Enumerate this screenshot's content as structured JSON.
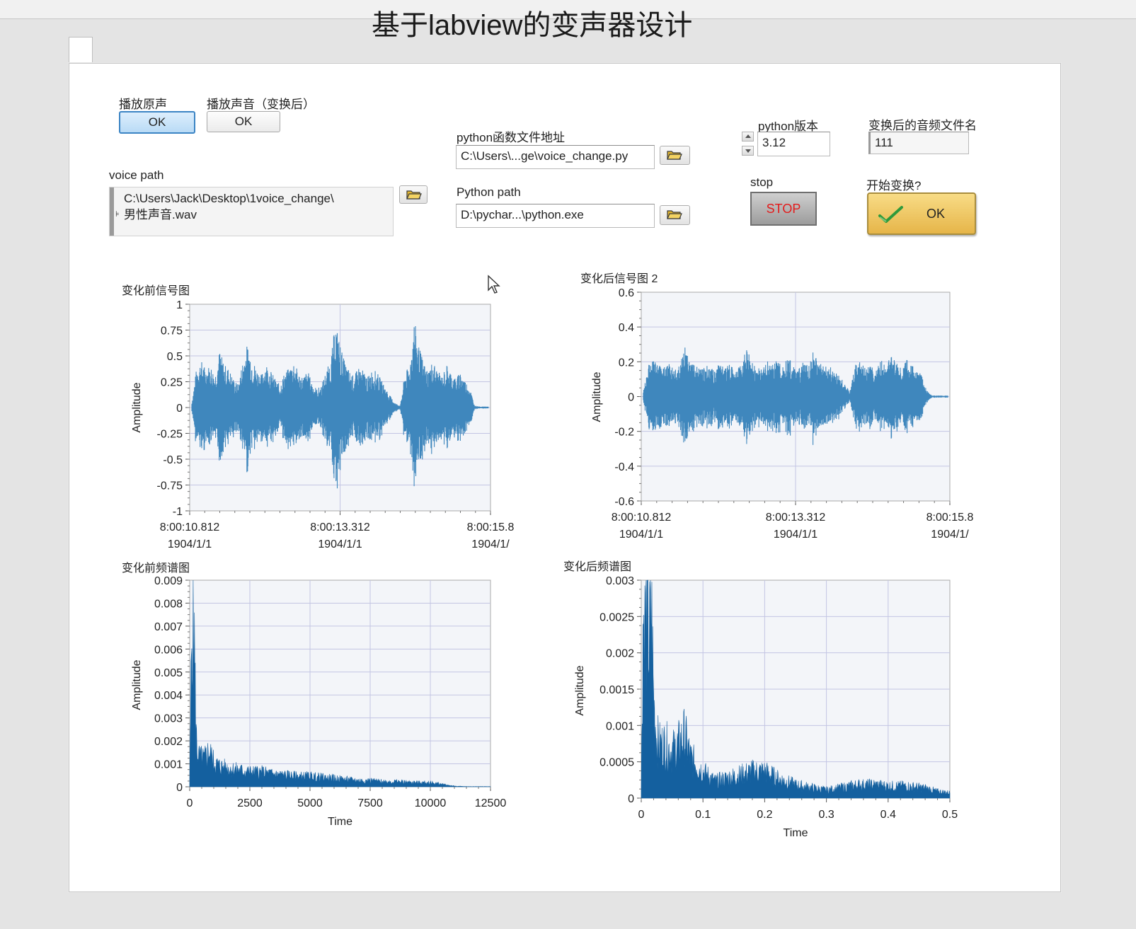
{
  "window": {
    "title": "基于labview的变声器设计"
  },
  "controls": {
    "play_original": {
      "label": "播放原声",
      "button": "OK"
    },
    "play_converted": {
      "label": "播放声音（变换后）",
      "button": "OK"
    },
    "voice_path": {
      "label": "voice path",
      "line1": "C:\\Users\\Jack\\Desktop\\1voice_change\\",
      "line2": "男性声音.wav"
    },
    "python_func_path": {
      "label": "python函数文件地址",
      "value": "C:\\Users\\...ge\\voice_change.py"
    },
    "python_path": {
      "label": "Python path",
      "value": "D:\\pychar...\\python.exe"
    },
    "python_version": {
      "label": "python版本",
      "value": "3.12"
    },
    "output_name": {
      "label": "变换后的音频文件名",
      "value": "111"
    },
    "stop": {
      "label": "stop",
      "button": "STOP"
    },
    "start": {
      "label": "开始变换?",
      "button": "OK"
    }
  },
  "icons": [
    "folder-open-icon",
    "spinner-up-icon",
    "spinner-down-icon",
    "checkmark-icon",
    "mouse-cursor-icon"
  ],
  "colors": {
    "waveform": "#3f87bd",
    "spectrum": "#14609f",
    "plot_bg": "#f3f5f9",
    "grid": "#c3c5e3",
    "stop_text": "#e31b1b",
    "ok_active": "#3b84c4",
    "start_button": "#e9bc55"
  },
  "chart_data": [
    {
      "type": "line",
      "title": "变化前信号图",
      "xlabel": "",
      "ylabel": "Amplitude",
      "x_ticks": [
        {
          "time": "8:00:10.812",
          "date": "1904/1/1"
        },
        {
          "time": "8:00:13.312",
          "date": "1904/1/1"
        },
        {
          "time": "8:00:15.8",
          "date": "1904/1/"
        }
      ],
      "ylim": [
        -1,
        1
      ],
      "yticks": [
        "1",
        "0.75",
        "0.5",
        "0.25",
        "0",
        "-0.25",
        "-0.5",
        "-0.75",
        "-1"
      ],
      "grid": true,
      "envelope": [
        0.05,
        0.38,
        0.46,
        0.38,
        0.42,
        0.32,
        0.56,
        0.42,
        0.38,
        0.28,
        0.22,
        0.46,
        0.62,
        0.48,
        0.38,
        0.32,
        0.44,
        0.36,
        0.28,
        0.22,
        0.34,
        0.38,
        0.46,
        0.34,
        0.3,
        0.36,
        0.24,
        0.18,
        0.22,
        0.36,
        0.46,
        0.84,
        0.62,
        0.44,
        0.36,
        0.3,
        0.4,
        0.36,
        0.3,
        0.38,
        0.34,
        0.26,
        0.18,
        0.1,
        0.04,
        0.02,
        0.34,
        0.4,
        0.86,
        0.6,
        0.44,
        0.36,
        0.46,
        0.36,
        0.3,
        0.42,
        0.34,
        0.28,
        0.36,
        0.26,
        0.2,
        0.02,
        0.01,
        0.01,
        0.01
      ]
    },
    {
      "type": "line",
      "title": "变化后信号图 2",
      "xlabel": "",
      "ylabel": "Amplitude",
      "x_ticks": [
        {
          "time": "8:00:10.812",
          "date": "1904/1/1"
        },
        {
          "time": "8:00:13.312",
          "date": "1904/1/1"
        },
        {
          "time": "8:00:15.8",
          "date": "1904/1/"
        }
      ],
      "ylim": [
        -0.6,
        0.6
      ],
      "yticks": [
        "0.6",
        "0.4",
        "0.2",
        "0",
        "-0.2",
        "-0.4",
        "-0.6"
      ],
      "grid": true,
      "envelope": [
        0.05,
        0.32,
        0.36,
        0.3,
        0.28,
        0.34,
        0.26,
        0.3,
        0.48,
        0.34,
        0.3,
        0.26,
        0.3,
        0.28,
        0.24,
        0.36,
        0.28,
        0.32,
        0.26,
        0.3,
        0.52,
        0.34,
        0.28,
        0.26,
        0.34,
        0.3,
        0.36,
        0.28,
        0.4,
        0.3,
        0.26,
        0.34,
        0.3,
        0.44,
        0.34,
        0.28,
        0.3,
        0.24,
        0.2,
        0.14,
        0.04,
        0.3,
        0.34,
        0.28,
        0.3,
        0.26,
        0.36,
        0.3,
        0.4,
        0.32,
        0.28,
        0.36,
        0.3,
        0.26,
        0.2,
        0.06,
        0.01,
        0.01,
        0.01,
        0.01
      ]
    },
    {
      "type": "area",
      "title": "变化前频谱图",
      "xlabel": "Time",
      "ylabel": "Amplitude",
      "xlim": [
        0,
        12500
      ],
      "ylim": [
        0,
        0.009
      ],
      "xticks": [
        "0",
        "2500",
        "5000",
        "7500",
        "10000",
        "12500"
      ],
      "yticks": [
        "0.009",
        "0.008",
        "0.007",
        "0.006",
        "0.005",
        "0.004",
        "0.003",
        "0.002",
        "0.001",
        "0"
      ],
      "grid": true,
      "x": [
        0,
        100,
        150,
        200,
        250,
        300,
        400,
        600,
        800,
        1000,
        1200,
        1500,
        2000,
        2500,
        3000,
        3500,
        4000,
        4500,
        5000,
        5500,
        6000,
        6500,
        7000,
        7500,
        8000,
        8500,
        9000,
        9500,
        10000,
        10500,
        11000,
        11500,
        12500
      ],
      "values": [
        0.0001,
        0.0085,
        0.0074,
        0.0067,
        0.0032,
        0.0018,
        0.0014,
        0.0013,
        0.0017,
        0.0012,
        0.001,
        0.0009,
        0.0008,
        0.0007,
        0.0007,
        0.0006,
        0.00055,
        0.0005,
        0.0005,
        0.00045,
        0.0004,
        0.00035,
        0.0003,
        0.0003,
        0.00025,
        0.00025,
        0.00022,
        0.0002,
        0.0002,
        0.00012,
        3e-05,
        1e-05,
        1e-05
      ]
    },
    {
      "type": "area",
      "title": "变化后频谱图",
      "xlabel": "Time",
      "ylabel": "Amplitude",
      "xlim": [
        0,
        0.5
      ],
      "ylim": [
        0,
        0.003
      ],
      "xticks": [
        "0",
        "0.1",
        "0.2",
        "0.3",
        "0.4",
        "0.5"
      ],
      "yticks": [
        "0.003",
        "0.0025",
        "0.002",
        "0.0015",
        "0.001",
        "0.0005",
        "0"
      ],
      "grid": true,
      "x": [
        0,
        0.003,
        0.006,
        0.01,
        0.013,
        0.016,
        0.02,
        0.025,
        0.03,
        0.04,
        0.05,
        0.06,
        0.07,
        0.08,
        0.1,
        0.12,
        0.14,
        0.16,
        0.18,
        0.2,
        0.22,
        0.25,
        0.28,
        0.3,
        0.32,
        0.35,
        0.38,
        0.4,
        0.43,
        0.46,
        0.48,
        0.5
      ],
      "values": [
        0.0001,
        0.0028,
        0.0025,
        0.0029,
        0.0022,
        0.003,
        0.0015,
        0.0009,
        0.0008,
        0.0008,
        0.0007,
        0.0008,
        0.00095,
        0.0006,
        0.0004,
        0.00025,
        0.0003,
        0.00035,
        0.0004,
        0.0004,
        0.0003,
        0.0002,
        0.00015,
        0.00012,
        0.00015,
        0.0002,
        0.0002,
        0.00018,
        0.00018,
        0.00015,
        0.0001,
        8e-05
      ]
    }
  ]
}
